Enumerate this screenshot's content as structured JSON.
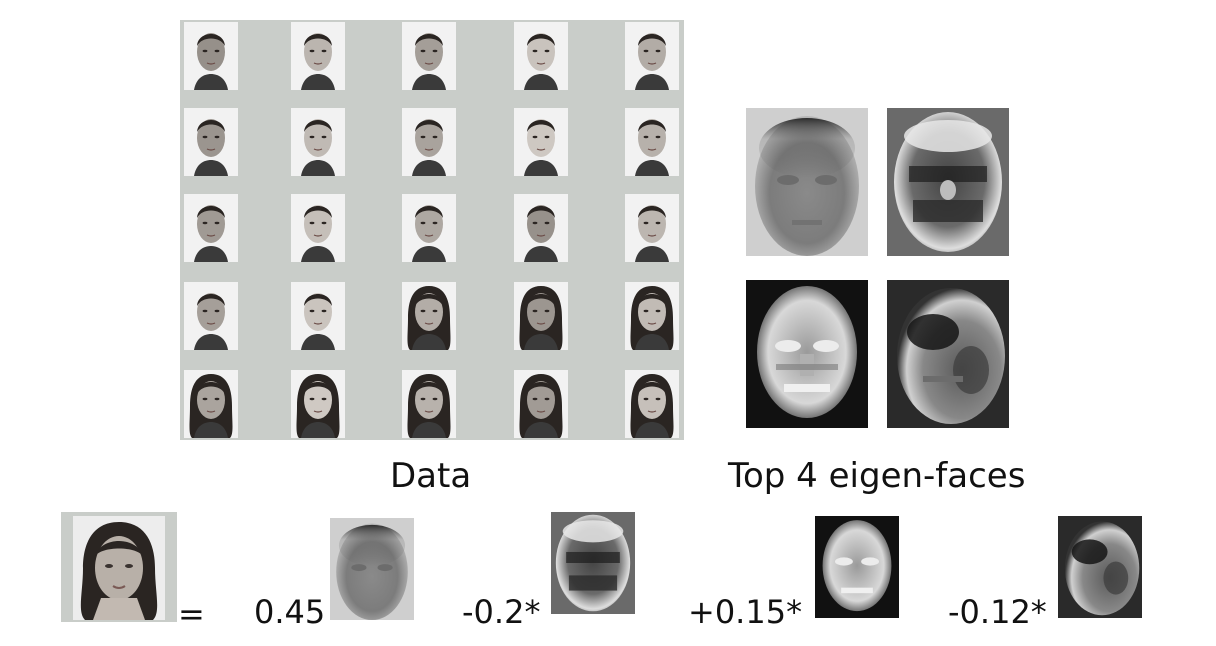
{
  "captions": {
    "data": "Data",
    "eigen": "Top 4 eigen-faces"
  },
  "equation": {
    "equals": "=",
    "coefficients": [
      "0.45",
      "-0.2*",
      "+0.15*",
      "-0.12*"
    ]
  },
  "palette": {
    "grid_background": "#c9cdc9",
    "photo_background": "#f2f2f2",
    "skin": "#b8b0a8",
    "hair": "#2a2522"
  }
}
